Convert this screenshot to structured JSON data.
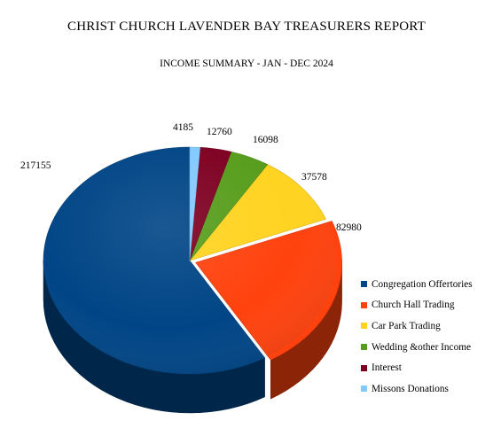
{
  "chart_data": {
    "type": "pie",
    "title": "CHRIST CHURCH LAVENDER BAY TREASURERS REPORT",
    "subtitle": "INCOME SUMMARY - JAN - DEC 2024",
    "legend_position": "right",
    "slices": [
      {
        "name": "Congregation Offertories",
        "value": 217155,
        "label": "217155",
        "color": "#004586"
      },
      {
        "name": "Church Hall Trading",
        "value": 82980,
        "label": "82980",
        "color": "#ff420e"
      },
      {
        "name": "Car Park Trading",
        "value": 37578,
        "label": "37578",
        "color": "#ffd320"
      },
      {
        "name": "Wedding &other Income",
        "value": 16098,
        "label": "16098",
        "color": "#579d1c"
      },
      {
        "name": "Interest",
        "value": 12760,
        "label": "12760",
        "color": "#7e0021"
      },
      {
        "name": "Missons Donations",
        "value": 4185,
        "label": "4185",
        "color": "#83caff"
      }
    ]
  }
}
